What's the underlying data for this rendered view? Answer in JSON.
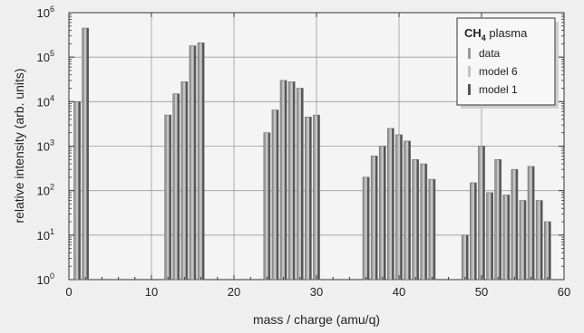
{
  "chart_data": {
    "type": "bar",
    "xlabel": "mass / charge (amu/q)",
    "ylabel": "relative intensity (arb. units)",
    "xlim": [
      0,
      60
    ],
    "ylim": [
      1,
      1000000
    ],
    "y_scale": "log",
    "x_ticks": [
      0,
      10,
      20,
      30,
      40,
      50,
      60
    ],
    "y_ticks": [
      {
        "value": 1,
        "base": "10",
        "exp": "0"
      },
      {
        "value": 10,
        "base": "10",
        "exp": "1"
      },
      {
        "value": 100,
        "base": "10",
        "exp": "2"
      },
      {
        "value": 1000,
        "base": "10",
        "exp": "3"
      },
      {
        "value": 10000,
        "base": "10",
        "exp": "4"
      },
      {
        "value": 100000,
        "base": "10",
        "exp": "5"
      },
      {
        "value": 1000000,
        "base": "10",
        "exp": "6"
      }
    ],
    "grid": true,
    "legend": {
      "position": "top-right",
      "title_main": "CH",
      "title_sub": "4",
      "title_rest": " plasma",
      "entries": [
        "data",
        "model 6",
        "model 1"
      ]
    },
    "colors": {
      "data": "#9a9a9a",
      "model 6": "#c4c4c4",
      "model 1": "#555555"
    },
    "bars": [
      {
        "x": 1,
        "value": 10000
      },
      {
        "x": 2,
        "value": 450000
      },
      {
        "x": 12,
        "value": 5000
      },
      {
        "x": 13,
        "value": 15000
      },
      {
        "x": 14,
        "value": 28000
      },
      {
        "x": 15,
        "value": 180000
      },
      {
        "x": 16,
        "value": 210000
      },
      {
        "x": 24,
        "value": 2000
      },
      {
        "x": 25,
        "value": 6500
      },
      {
        "x": 26,
        "value": 30000
      },
      {
        "x": 27,
        "value": 28000
      },
      {
        "x": 28,
        "value": 20000
      },
      {
        "x": 29,
        "value": 4500
      },
      {
        "x": 30,
        "value": 5000
      },
      {
        "x": 36,
        "value": 200
      },
      {
        "x": 37,
        "value": 600
      },
      {
        "x": 38,
        "value": 1000
      },
      {
        "x": 39,
        "value": 2500
      },
      {
        "x": 40,
        "value": 1800
      },
      {
        "x": 41,
        "value": 1300
      },
      {
        "x": 42,
        "value": 500
      },
      {
        "x": 43,
        "value": 400
      },
      {
        "x": 44,
        "value": 180
      },
      {
        "x": 48,
        "value": 10
      },
      {
        "x": 49,
        "value": 150
      },
      {
        "x": 50,
        "value": 1000
      },
      {
        "x": 51,
        "value": 90
      },
      {
        "x": 52,
        "value": 500
      },
      {
        "x": 53,
        "value": 80
      },
      {
        "x": 54,
        "value": 300
      },
      {
        "x": 55,
        "value": 60
      },
      {
        "x": 56,
        "value": 350
      },
      {
        "x": 57,
        "value": 60
      },
      {
        "x": 58,
        "value": 20
      }
    ]
  }
}
